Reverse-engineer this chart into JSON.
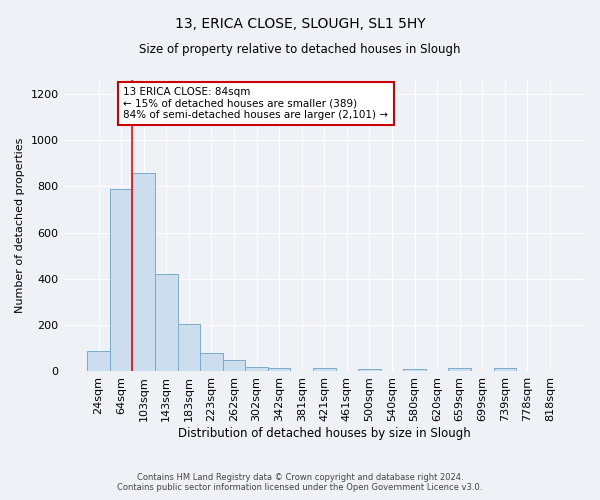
{
  "title1": "13, ERICA CLOSE, SLOUGH, SL1 5HY",
  "title2": "Size of property relative to detached houses in Slough",
  "xlabel": "Distribution of detached houses by size in Slough",
  "ylabel": "Number of detached properties",
  "categories": [
    "24sqm",
    "64sqm",
    "103sqm",
    "143sqm",
    "183sqm",
    "223sqm",
    "262sqm",
    "302sqm",
    "342sqm",
    "381sqm",
    "421sqm",
    "461sqm",
    "500sqm",
    "540sqm",
    "580sqm",
    "620sqm",
    "659sqm",
    "699sqm",
    "739sqm",
    "778sqm",
    "818sqm"
  ],
  "values": [
    90,
    790,
    860,
    420,
    205,
    80,
    50,
    20,
    13,
    0,
    13,
    0,
    10,
    0,
    10,
    0,
    13,
    0,
    13,
    0,
    0
  ],
  "bar_color": "#ccdded",
  "bar_edge_color": "#7aabcc",
  "redline_x": 1.5,
  "ylim": [
    0,
    1260
  ],
  "yticks": [
    0,
    200,
    400,
    600,
    800,
    1000,
    1200
  ],
  "annotation_text": "13 ERICA CLOSE: 84sqm\n← 15% of detached houses are smaller (389)\n84% of semi-detached houses are larger (2,101) →",
  "footer": "Contains HM Land Registry data © Crown copyright and database right 2024.\nContains public sector information licensed under the Open Government Licence v3.0.",
  "background_color": "#eef2f7",
  "grid_color": "#ffffff",
  "annotation_box_color": "#ffffff",
  "annotation_box_edge": "#cc0000"
}
